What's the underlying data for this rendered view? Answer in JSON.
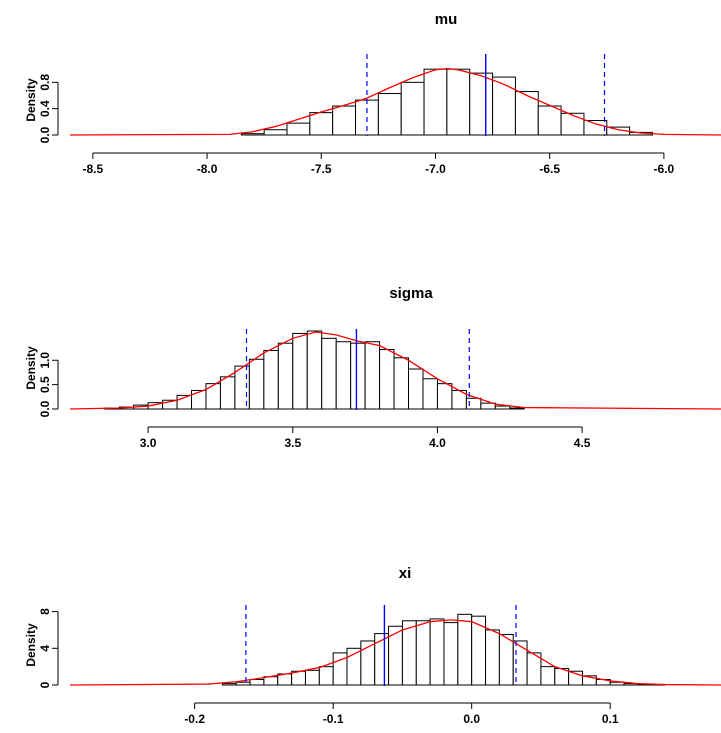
{
  "chart_data": [
    {
      "type": "bar",
      "title": "mu",
      "ylabel": "Density",
      "xlim": [
        -8.6,
        -5.75
      ],
      "ylim": [
        0,
        1.2
      ],
      "xticks": [
        -8.5,
        -8.0,
        -7.5,
        -7.0,
        -6.5,
        -6.0
      ],
      "xtick_labels": [
        "-8.5",
        "-8.0",
        "-7.5",
        "-7.0",
        "-6.5",
        "-6.0"
      ],
      "yticks": [
        0,
        0.4,
        0.8
      ],
      "ytick_labels": [
        "0.0",
        "0.4",
        "0.8"
      ],
      "bin_width": 0.1,
      "bin_starts": [
        -7.85,
        -7.75,
        -7.65,
        -7.55,
        -7.45,
        -7.35,
        -7.25,
        -7.15,
        -7.05,
        -6.95,
        -6.85,
        -6.75,
        -6.65,
        -6.55,
        -6.45,
        -6.35,
        -6.25,
        -6.15
      ],
      "values": [
        0.02,
        0.08,
        0.18,
        0.34,
        0.44,
        0.53,
        0.63,
        0.8,
        1.0,
        1.0,
        0.94,
        0.88,
        0.66,
        0.44,
        0.33,
        0.22,
        0.12,
        0.04
      ],
      "density_curve": {
        "x": [
          -8.6,
          -7.9,
          -7.8,
          -7.7,
          -7.6,
          -7.5,
          -7.4,
          -7.3,
          -7.2,
          -7.1,
          -7.0,
          -6.95,
          -6.9,
          -6.8,
          -6.7,
          -6.6,
          -6.5,
          -6.4,
          -6.3,
          -6.2,
          -6.1,
          -6.0,
          -5.75
        ],
        "y": [
          0,
          0.01,
          0.05,
          0.13,
          0.24,
          0.35,
          0.45,
          0.56,
          0.72,
          0.87,
          0.99,
          1.01,
          0.99,
          0.9,
          0.77,
          0.6,
          0.45,
          0.3,
          0.17,
          0.08,
          0.03,
          0.01,
          0
        ]
      },
      "vlines": {
        "solid": [
          -6.78
        ],
        "dashed": [
          -7.3,
          -6.26
        ]
      },
      "colors": {
        "bars": "#ffffff",
        "bar_edge": "#000000",
        "curve": "#ff0000",
        "vlines": "#0000ff"
      }
    },
    {
      "type": "bar",
      "title": "sigma",
      "ylabel": "Density",
      "xlim": [
        2.73,
        4.98
      ],
      "ylim": [
        0,
        1.6
      ],
      "xticks": [
        3.0,
        3.5,
        4.0,
        4.5
      ],
      "xtick_labels": [
        "3.0",
        "3.5",
        "4.0",
        "4.5"
      ],
      "yticks": [
        0,
        0.5,
        1.0
      ],
      "ytick_labels": [
        "0.0",
        "0.5",
        "1.0"
      ],
      "bin_width": 0.05,
      "bin_starts": [
        2.85,
        2.9,
        2.95,
        3.0,
        3.05,
        3.1,
        3.15,
        3.2,
        3.25,
        3.3,
        3.35,
        3.4,
        3.45,
        3.5,
        3.55,
        3.6,
        3.65,
        3.7,
        3.75,
        3.8,
        3.85,
        3.9,
        3.95,
        4.0,
        4.05,
        4.1,
        4.15,
        4.2,
        4.25
      ],
      "values": [
        0.02,
        0.04,
        0.08,
        0.13,
        0.18,
        0.28,
        0.38,
        0.52,
        0.66,
        0.88,
        1.02,
        1.2,
        1.35,
        1.55,
        1.6,
        1.45,
        1.38,
        1.35,
        1.38,
        1.22,
        1.05,
        0.82,
        0.62,
        0.52,
        0.38,
        0.22,
        0.12,
        0.06,
        0.02
      ],
      "density_curve": {
        "x": [
          2.73,
          2.9,
          3.0,
          3.1,
          3.2,
          3.3,
          3.4,
          3.5,
          3.58,
          3.65,
          3.72,
          3.8,
          3.9,
          4.0,
          4.1,
          4.2,
          4.3,
          4.98
        ],
        "y": [
          0,
          0.02,
          0.06,
          0.18,
          0.4,
          0.75,
          1.15,
          1.45,
          1.58,
          1.52,
          1.4,
          1.3,
          1.0,
          0.62,
          0.3,
          0.1,
          0.03,
          0
        ]
      },
      "vlines": {
        "solid": [
          3.72
        ],
        "dashed": [
          3.34,
          4.11
        ]
      },
      "colors": {
        "bars": "#ffffff",
        "bar_edge": "#000000",
        "curve": "#ff0000",
        "vlines": "#0000ff"
      }
    },
    {
      "type": "bar",
      "title": "xi",
      "ylabel": "Density",
      "xlim": [
        -0.29,
        0.18
      ],
      "ylim": [
        0,
        8.5
      ],
      "xticks": [
        -0.2,
        -0.1,
        0.0,
        0.1
      ],
      "xtick_labels": [
        "-0.2",
        "-0.1",
        "0.0",
        "0.1"
      ],
      "yticks": [
        0,
        4,
        8
      ],
      "ytick_labels": [
        "0",
        "4",
        "8"
      ],
      "bin_width": 0.01,
      "bin_starts": [
        -0.18,
        -0.17,
        -0.16,
        -0.15,
        -0.14,
        -0.13,
        -0.12,
        -0.11,
        -0.1,
        -0.09,
        -0.08,
        -0.07,
        -0.06,
        -0.05,
        -0.04,
        -0.03,
        -0.02,
        -0.01,
        0.0,
        0.01,
        0.02,
        0.03,
        0.04,
        0.05,
        0.06,
        0.07,
        0.08,
        0.09,
        0.1,
        0.11,
        0.12,
        0.13
      ],
      "values": [
        0.15,
        0.3,
        0.6,
        0.9,
        1.2,
        1.5,
        1.6,
        2.0,
        3.5,
        4.0,
        4.8,
        5.6,
        6.4,
        7.0,
        7.0,
        7.2,
        6.8,
        7.7,
        7.5,
        6.0,
        5.5,
        4.8,
        3.5,
        2.0,
        1.8,
        1.5,
        1.0,
        0.6,
        0.3,
        0.15,
        0.1,
        0.05
      ],
      "density_curve": {
        "x": [
          -0.29,
          -0.19,
          -0.17,
          -0.15,
          -0.13,
          -0.11,
          -0.09,
          -0.07,
          -0.05,
          -0.03,
          -0.015,
          0.0,
          0.02,
          0.04,
          0.06,
          0.08,
          0.1,
          0.12,
          0.14,
          0.18
        ],
        "y": [
          0,
          0.1,
          0.35,
          0.8,
          1.3,
          1.9,
          3.0,
          4.5,
          6.0,
          6.9,
          7.1,
          6.9,
          5.6,
          3.8,
          2.0,
          1.0,
          0.45,
          0.15,
          0.05,
          0
        ]
      },
      "vlines": {
        "solid": [
          -0.063
        ],
        "dashed": [
          -0.163,
          0.032
        ]
      },
      "colors": {
        "bars": "#ffffff",
        "bar_edge": "#000000",
        "curve": "#ff0000",
        "vlines": "#0000ff"
      }
    }
  ]
}
